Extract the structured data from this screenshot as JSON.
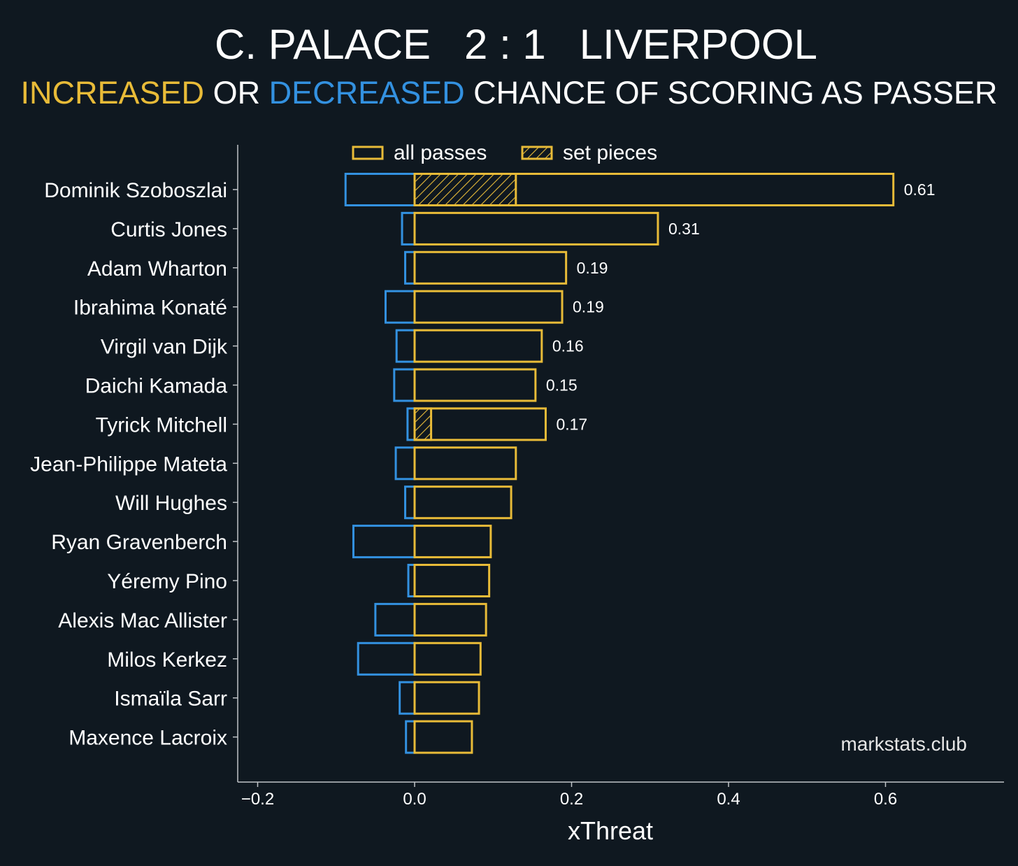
{
  "colors": {
    "background": "#0f1820",
    "increased": "#e8bb38",
    "decreased": "#3391e0",
    "axis": "#c0c4c8",
    "text": "#ffffff"
  },
  "title": {
    "home": "C. PALACE",
    "score": "2 : 1",
    "away": "LIVERPOOL"
  },
  "subtitle": {
    "increased": "INCREASED",
    "or": " OR ",
    "decreased": "DECREASED",
    "rest": " CHANCE OF SCORING AS PASSER"
  },
  "watermark": "markstats.club",
  "chart_data": {
    "type": "bar",
    "orientation": "horizontal",
    "xlabel": "xThreat",
    "xlim": [
      -0.25,
      0.74
    ],
    "xticks": [
      -0.2,
      0.0,
      0.2,
      0.4,
      0.6
    ],
    "xtick_labels": [
      "−0.2",
      "0.0",
      "0.2",
      "0.4",
      "0.6"
    ],
    "legend": {
      "position": "top",
      "entries": [
        "all passes",
        "set pieces"
      ]
    },
    "categories": [
      "Dominik Szoboszlai",
      "Curtis Jones",
      "Adam Wharton",
      "Ibrahima Konaté",
      "Virgil van Dijk",
      "Daichi Kamada",
      "Tyrick Mitchell",
      "Jean-Philippe Mateta",
      "Will Hughes",
      "Ryan Gravenberch",
      "Yéremy Pino",
      "Alexis Mac Allister",
      "Milos Kerkez",
      "Ismaïla Sarr",
      "Maxence Lacroix"
    ],
    "series": [
      {
        "name": "increased",
        "values": [
          0.61,
          0.31,
          0.193,
          0.188,
          0.162,
          0.154,
          0.167,
          0.129,
          0.123,
          0.097,
          0.095,
          0.091,
          0.084,
          0.082,
          0.073
        ]
      },
      {
        "name": "decreased",
        "values": [
          -0.088,
          -0.016,
          -0.012,
          -0.037,
          -0.023,
          -0.026,
          -0.009,
          -0.024,
          -0.012,
          -0.078,
          -0.008,
          -0.05,
          -0.072,
          -0.019,
          -0.011
        ]
      },
      {
        "name": "set pieces",
        "values": [
          0.129,
          0,
          0,
          0,
          0,
          0,
          0.021,
          0,
          0,
          0,
          0,
          0,
          0,
          0,
          0
        ]
      }
    ],
    "data_labels": [
      "0.61",
      "0.31",
      "0.19",
      "0.19",
      "0.16",
      "0.15",
      "0.17",
      "",
      "",
      "",
      "",
      "",
      "",
      "",
      ""
    ]
  }
}
